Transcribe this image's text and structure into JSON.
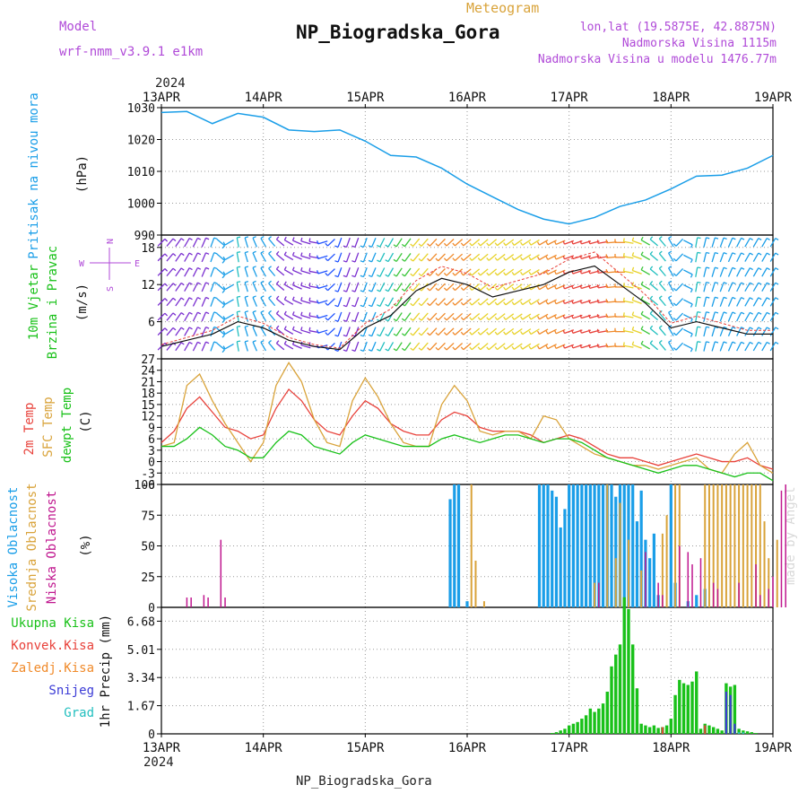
{
  "header": {
    "model_label": "Model",
    "model_name": "wrf-nmm_v3.9.1 e1km",
    "product": "Meteogram",
    "station": "NP_Biogradska_Gora",
    "coords": "lon,lat (19.5875E, 42.8875N)",
    "altitude": "Nadmorska Visina 1115m",
    "model_altitude": "Nadmorska Visina u modelu 1476.77m",
    "year": "2024",
    "footer_station": "NP_Biogradska_Gora",
    "credit": "made by Angel"
  },
  "colors": {
    "pressure": "#1a9ee8",
    "temp2m": "#e8413a",
    "sfc": "#d9a33a",
    "dewpt": "#19c119",
    "cloud_high": "#1a9ee8",
    "cloud_mid": "#d9a33a",
    "cloud_low": "#c0178f",
    "precip_total": "#19c119",
    "precip_conv": "#e8413a",
    "precip_frozen": "#f08a2a",
    "snow": "#3b3bd6",
    "hail": "#22bfbf",
    "purple_text": "#b04ad8"
  },
  "x_axis": {
    "labels": [
      "13APR",
      "14APR",
      "15APR",
      "16APR",
      "17APR",
      "18APR",
      "19APR"
    ]
  },
  "panels": {
    "pressure": {
      "label_1": "Pritisak na nivou mora",
      "label_2": "(hPa)",
      "ticks": [
        "990",
        "1000",
        "1010",
        "1020",
        "1030"
      ]
    },
    "wind": {
      "label_1": "10m Vjetar",
      "label_2": "Brzina i Pravac",
      "label_3": "(m/s)",
      "ticks": [
        "6",
        "12",
        "18"
      ],
      "compass": {
        "w": "W",
        "e": "E",
        "s": "S",
        "n": "N"
      }
    },
    "temp": {
      "label_1": "2m Temp",
      "label_2": "SFC Temp",
      "label_3": "dewpt Temp",
      "label_4": "(C)",
      "ticks": [
        "-6",
        "-3",
        "0",
        "3",
        "6",
        "9",
        "12",
        "15",
        "18",
        "21",
        "24",
        "27"
      ]
    },
    "cloud": {
      "label_1": "Visoka Oblacnost",
      "label_2": "Srednja Oblacnost",
      "label_3": "Niska Oblacnost",
      "label_4": "(%)",
      "ticks": [
        "0",
        "25",
        "50",
        "75",
        "100"
      ]
    },
    "precip": {
      "label_1": "Ukupna Kisa",
      "label_2": "Konvek.Kisa",
      "label_3": "Zaledj.Kisa",
      "label_4": "Snijeg",
      "label_5": "Grad",
      "label_6": "1hr Precip (mm)",
      "ticks": [
        "0",
        "1.67",
        "3.34",
        "5.01",
        "6.68"
      ]
    }
  },
  "chart_data": [
    {
      "type": "line",
      "title": "Pritisak na nivou mora (hPa)",
      "x_hours": [
        0,
        6,
        12,
        18,
        24,
        30,
        36,
        42,
        48,
        54,
        60,
        66,
        72,
        78,
        84,
        90,
        96,
        102,
        108,
        114,
        120,
        126,
        132,
        138,
        144
      ],
      "series": [
        {
          "name": "Pritisak na nivou mora",
          "values": [
            1028.5,
            1028.8,
            1025,
            1028.2,
            1027,
            1023,
            1022.5,
            1023,
            1019.5,
            1015,
            1014.5,
            1011,
            1006,
            1002,
            998,
            995,
            993.5,
            995.5,
            999,
            1001,
            1004.5,
            1008.5,
            1008.8,
            1011,
            1015
          ]
        }
      ],
      "ylim": [
        990,
        1030
      ],
      "grid": true
    },
    {
      "type": "line",
      "title": "10m Vjetar Brzina i Pravac (m/s)",
      "x_hours": [
        0,
        6,
        12,
        18,
        24,
        30,
        36,
        42,
        48,
        54,
        60,
        66,
        72,
        78,
        84,
        90,
        96,
        102,
        108,
        114,
        120,
        126,
        132,
        138,
        144
      ],
      "series": [
        {
          "name": "10m Vjetar",
          "values": [
            2,
            3,
            4,
            6,
            5,
            3,
            2,
            1.5,
            5,
            7,
            11,
            13,
            12,
            10,
            11,
            12,
            14,
            15,
            12,
            9,
            5,
            6,
            5,
            4,
            4
          ]
        }
      ],
      "directions_deg": [
        45,
        30,
        20,
        350,
        330,
        300,
        280,
        200,
        200,
        210,
        220,
        225,
        230,
        230,
        235,
        240,
        250,
        255,
        270,
        300,
        330,
        10,
        20,
        30,
        30
      ],
      "ylim": [
        0,
        20
      ],
      "grid": true
    },
    {
      "type": "line",
      "title": "2m Temp / SFC Temp / dewpt Temp (C)",
      "x_hours": [
        0,
        3,
        6,
        9,
        12,
        15,
        18,
        21,
        24,
        27,
        30,
        33,
        36,
        39,
        42,
        45,
        48,
        51,
        54,
        57,
        60,
        63,
        66,
        69,
        72,
        75,
        78,
        81,
        84,
        87,
        90,
        93,
        96,
        99,
        102,
        105,
        108,
        111,
        114,
        117,
        120,
        123,
        126,
        129,
        132,
        135,
        138,
        141,
        144
      ],
      "series": [
        {
          "name": "2m Temp",
          "values": [
            5,
            8,
            14,
            17,
            13,
            9,
            8,
            6,
            7,
            14,
            19,
            16,
            11,
            8,
            7,
            12,
            16,
            14,
            10,
            8,
            7,
            7,
            11,
            13,
            12,
            9,
            8,
            8,
            8,
            7,
            5,
            6,
            7,
            6,
            4,
            2,
            1,
            1,
            0,
            -1,
            0,
            1,
            2,
            1,
            0,
            0,
            1,
            -1,
            -2
          ]
        },
        {
          "name": "SFC Temp",
          "values": [
            4,
            5,
            20,
            23,
            16,
            10,
            5,
            0,
            5,
            20,
            26,
            21,
            11,
            5,
            4,
            16,
            22,
            17,
            10,
            5,
            4,
            4,
            15,
            20,
            16,
            8,
            7,
            8,
            8,
            6,
            12,
            11,
            6,
            4,
            2,
            1,
            0,
            -1,
            -1,
            -2,
            -1,
            0,
            1,
            -2,
            -3,
            2,
            5,
            -1,
            -3
          ]
        },
        {
          "name": "dewpt Temp",
          "values": [
            4,
            4,
            6,
            9,
            7,
            4,
            3,
            1,
            1,
            5,
            8,
            7,
            4,
            3,
            2,
            5,
            7,
            6,
            5,
            4,
            4,
            4,
            6,
            7,
            6,
            5,
            6,
            7,
            7,
            6,
            5,
            6,
            6,
            5,
            3,
            1,
            0,
            -1,
            -2,
            -3,
            -2,
            -1,
            -1,
            -2,
            -3,
            -4,
            -3,
            -3,
            -5
          ]
        }
      ],
      "ylim": [
        -6,
        27
      ],
      "grid": true
    },
    {
      "type": "bar",
      "title": "Oblacnost (%)",
      "ylim": [
        0,
        100
      ],
      "series": [
        {
          "name": "Visoka Oblacnost",
          "bars": [
            [
              68,
              88
            ],
            [
              69,
              100
            ],
            [
              70,
              100
            ],
            [
              72,
              5
            ],
            [
              89,
              100
            ],
            [
              90,
              100
            ],
            [
              91,
              100
            ],
            [
              92,
              95
            ],
            [
              93,
              90
            ],
            [
              94,
              65
            ],
            [
              95,
              80
            ],
            [
              96,
              100
            ],
            [
              97,
              100
            ],
            [
              98,
              100
            ],
            [
              99,
              100
            ],
            [
              100,
              100
            ],
            [
              101,
              100
            ],
            [
              102,
              100
            ],
            [
              103,
              100
            ],
            [
              104,
              100
            ],
            [
              105,
              100
            ],
            [
              106,
              100
            ],
            [
              107,
              90
            ],
            [
              108,
              100
            ],
            [
              109,
              100
            ],
            [
              110,
              100
            ],
            [
              111,
              100
            ],
            [
              112,
              70
            ],
            [
              113,
              95
            ],
            [
              114,
              55
            ],
            [
              115,
              40
            ],
            [
              116,
              60
            ],
            [
              117,
              10
            ],
            [
              120,
              100
            ],
            [
              121,
              20
            ],
            [
              124,
              5
            ],
            [
              126,
              10
            ],
            [
              128,
              15
            ]
          ]
        },
        {
          "name": "Srednja Oblacnost",
          "bars": [
            [
              73,
              100
            ],
            [
              74,
              38
            ],
            [
              76,
              5
            ],
            [
              102,
              20
            ],
            [
              105,
              100
            ],
            [
              107,
              40
            ],
            [
              108,
              85
            ],
            [
              110,
              55
            ],
            [
              113,
              30
            ],
            [
              118,
              60
            ],
            [
              119,
              75
            ],
            [
              121,
              100
            ],
            [
              122,
              100
            ],
            [
              128,
              100
            ],
            [
              129,
              100
            ],
            [
              130,
              100
            ],
            [
              131,
              100
            ],
            [
              132,
              100
            ],
            [
              133,
              100
            ],
            [
              134,
              100
            ],
            [
              135,
              100
            ],
            [
              136,
              100
            ],
            [
              137,
              100
            ],
            [
              138,
              100
            ],
            [
              139,
              100
            ],
            [
              140,
              100
            ],
            [
              141,
              100
            ],
            [
              142,
              70
            ],
            [
              143,
              40
            ],
            [
              145,
              55
            ]
          ]
        },
        {
          "name": "Niska Oblacnost",
          "bars": [
            [
              6,
              8
            ],
            [
              7,
              8
            ],
            [
              10,
              10
            ],
            [
              11,
              8
            ],
            [
              14,
              55
            ],
            [
              15,
              8
            ],
            [
              103,
              20
            ],
            [
              114,
              45
            ],
            [
              117,
              20
            ],
            [
              118,
              10
            ],
            [
              122,
              50
            ],
            [
              124,
              45
            ],
            [
              125,
              35
            ],
            [
              127,
              40
            ],
            [
              130,
              20
            ],
            [
              131,
              15
            ],
            [
              136,
              20
            ],
            [
              140,
              35
            ],
            [
              141,
              10
            ],
            [
              143,
              15
            ],
            [
              144,
              25
            ],
            [
              146,
              95
            ],
            [
              147,
              100
            ]
          ]
        }
      ]
    },
    {
      "type": "bar",
      "title": "1hr Precip (mm)",
      "ylim": [
        0,
        7.5
      ],
      "series": [
        {
          "name": "Ukupna Kisa",
          "bars": [
            [
              92,
              0.05
            ],
            [
              93,
              0.1
            ],
            [
              94,
              0.2
            ],
            [
              95,
              0.3
            ],
            [
              96,
              0.5
            ],
            [
              97,
              0.6
            ],
            [
              98,
              0.7
            ],
            [
              99,
              0.9
            ],
            [
              100,
              1.1
            ],
            [
              101,
              1.5
            ],
            [
              102,
              1.3
            ],
            [
              103,
              1.5
            ],
            [
              104,
              1.8
            ],
            [
              105,
              2.5
            ],
            [
              106,
              4.0
            ],
            [
              107,
              4.7
            ],
            [
              108,
              5.3
            ],
            [
              109,
              8.1
            ],
            [
              110,
              7.4
            ],
            [
              111,
              5.3
            ],
            [
              112,
              2.7
            ],
            [
              113,
              0.6
            ],
            [
              114,
              0.5
            ],
            [
              115,
              0.4
            ],
            [
              116,
              0.5
            ],
            [
              117,
              0.35
            ],
            [
              118,
              0.4
            ],
            [
              119,
              0.5
            ],
            [
              120,
              0.9
            ],
            [
              121,
              2.3
            ],
            [
              122,
              3.2
            ],
            [
              123,
              3.0
            ],
            [
              124,
              2.9
            ],
            [
              125,
              3.1
            ],
            [
              126,
              3.7
            ],
            [
              127,
              0.3
            ],
            [
              128,
              0.6
            ],
            [
              129,
              0.5
            ],
            [
              130,
              0.4
            ],
            [
              131,
              0.3
            ],
            [
              132,
              0.2
            ],
            [
              133,
              3.0
            ],
            [
              134,
              2.8
            ],
            [
              135,
              2.9
            ],
            [
              136,
              0.3
            ],
            [
              137,
              0.2
            ],
            [
              138,
              0.15
            ],
            [
              139,
              0.1
            ],
            [
              140,
              0.05
            ]
          ]
        },
        {
          "name": "Konvek.Kisa",
          "bars": [
            [
              118,
              0.4
            ],
            [
              128,
              0.5
            ],
            [
              134,
              0.4
            ]
          ]
        },
        {
          "name": "Snijeg",
          "bars": [
            [
              133,
              2.5
            ],
            [
              134,
              2.3
            ],
            [
              135,
              0.6
            ]
          ]
        },
        {
          "name": "Grad",
          "bars": [
            [
              136,
              0.1
            ],
            [
              137,
              0.1
            ]
          ]
        }
      ]
    }
  ]
}
